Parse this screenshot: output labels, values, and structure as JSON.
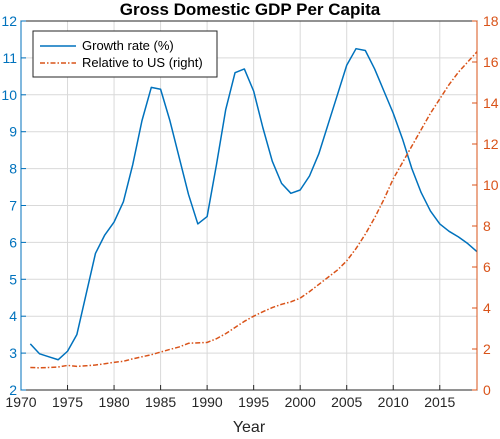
{
  "chart_data": {
    "type": "line",
    "title": "Gross Domestic GDP Per Capita",
    "xlabel": "Year",
    "ylabel": "",
    "ylabel_right": "",
    "xlim": [
      1970,
      2019
    ],
    "ylim": [
      2,
      12
    ],
    "ylim_right": [
      0,
      18
    ],
    "xticks": [
      1970,
      1975,
      1980,
      1985,
      1990,
      1995,
      2000,
      2005,
      2010,
      2015
    ],
    "yticks": [
      2,
      3,
      4,
      5,
      6,
      7,
      8,
      9,
      10,
      11,
      12
    ],
    "yticks_right": [
      0,
      2,
      4,
      6,
      8,
      10,
      12,
      14,
      16,
      18
    ],
    "grid": true,
    "legend_position": "top-left",
    "colors": {
      "left_axis": "#0072BD",
      "right_axis": "#D95319",
      "grid": "#d9d9d9",
      "axes": "#262626"
    },
    "series": [
      {
        "name": "Growth rate (%)",
        "axis": "left",
        "style": "solid",
        "color": "#0072BD",
        "x": [
          1971,
          1972,
          1973,
          1974,
          1975,
          1976,
          1977,
          1978,
          1979,
          1980,
          1981,
          1982,
          1983,
          1984,
          1985,
          1986,
          1987,
          1988,
          1989,
          1990,
          1991,
          1992,
          1993,
          1994,
          1995,
          1996,
          1997,
          1998,
          1999,
          2000,
          2001,
          2002,
          2003,
          2004,
          2005,
          2006,
          2007,
          2008,
          2009,
          2010,
          2011,
          2012,
          2013,
          2014,
          2015,
          2016,
          2017,
          2018,
          2019
        ],
        "values": [
          3.25,
          2.98,
          2.9,
          2.82,
          3.05,
          3.5,
          4.6,
          5.7,
          6.2,
          6.55,
          7.1,
          8.1,
          9.3,
          10.2,
          10.15,
          9.3,
          8.3,
          7.3,
          6.5,
          6.7,
          8.1,
          9.6,
          10.6,
          10.7,
          10.1,
          9.1,
          8.2,
          7.6,
          7.33,
          7.42,
          7.8,
          8.4,
          9.2,
          10.0,
          10.8,
          11.25,
          11.2,
          10.7,
          10.1,
          9.5,
          8.8,
          8.0,
          7.35,
          6.85,
          6.5,
          6.3,
          6.15,
          5.97,
          5.75
        ]
      },
      {
        "name": "Relative to US (right)",
        "axis": "right",
        "style": "dashdot",
        "color": "#D95319",
        "x": [
          1971,
          1972,
          1973,
          1974,
          1975,
          1976,
          1977,
          1978,
          1979,
          1980,
          1981,
          1982,
          1983,
          1984,
          1985,
          1986,
          1987,
          1988,
          1989,
          1990,
          1991,
          1992,
          1993,
          1994,
          1995,
          1996,
          1997,
          1998,
          1999,
          2000,
          2001,
          2002,
          2003,
          2004,
          2005,
          2006,
          2007,
          2008,
          2009,
          2010,
          2011,
          2012,
          2013,
          2014,
          2015,
          2016,
          2017,
          2018,
          2019
        ],
        "values": [
          1.1,
          1.08,
          1.1,
          1.12,
          1.2,
          1.15,
          1.18,
          1.22,
          1.28,
          1.35,
          1.4,
          1.52,
          1.62,
          1.72,
          1.85,
          1.98,
          2.1,
          2.28,
          2.3,
          2.32,
          2.5,
          2.75,
          3.05,
          3.35,
          3.6,
          3.82,
          4.02,
          4.18,
          4.3,
          4.48,
          4.8,
          5.15,
          5.5,
          5.85,
          6.3,
          6.9,
          7.6,
          8.4,
          9.3,
          10.3,
          11.1,
          11.9,
          12.7,
          13.5,
          14.2,
          14.9,
          15.5,
          16.0,
          16.5
        ]
      }
    ]
  }
}
